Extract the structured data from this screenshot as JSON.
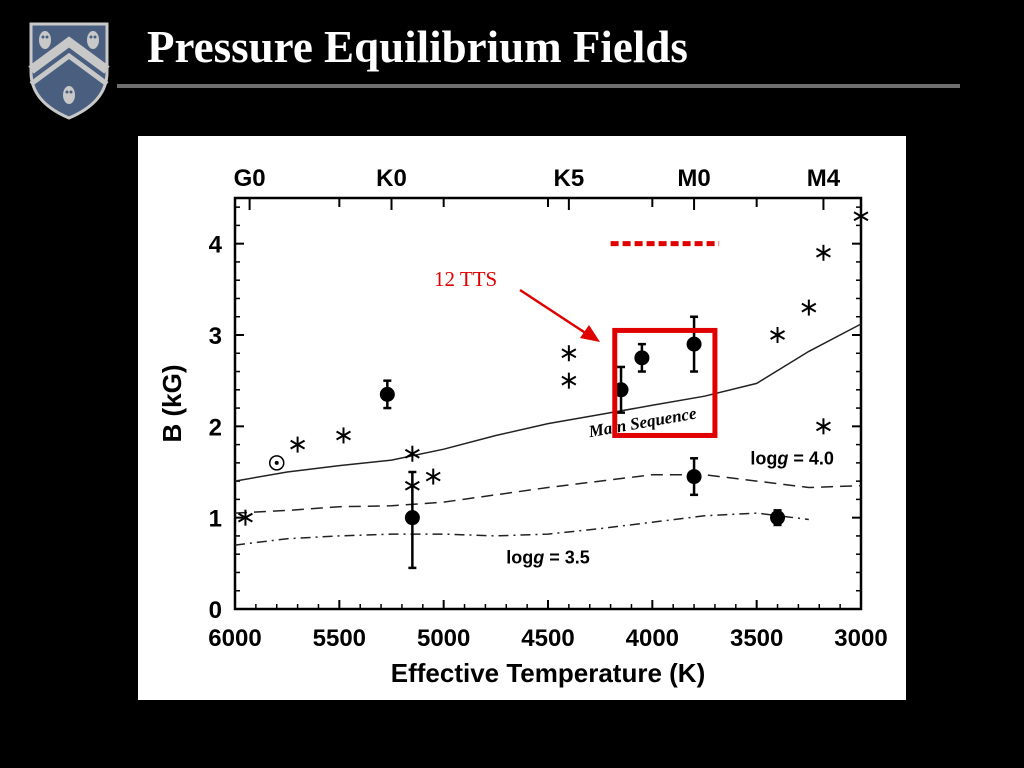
{
  "slide": {
    "title": "Pressure Equilibrium Fields"
  },
  "colors": {
    "background": "#000000",
    "title_text": "#ffffff",
    "rule": "#6e6e6e",
    "annotation_red": "#e00000",
    "crest_blue": "#4a5f80",
    "crest_gray": "#c8c8c8"
  },
  "annotation": {
    "label": "12 TTS"
  },
  "chart_data": {
    "type": "scatter",
    "title": "",
    "xlabel": "Effective Temperature (K)",
    "ylabel": "B (kG)",
    "xlim": [
      6000,
      3000
    ],
    "ylim": [
      0,
      4.5
    ],
    "x_reversed": true,
    "grid": false,
    "legend": "none",
    "x_ticks": [
      {
        "value": 6000,
        "label": "6000"
      },
      {
        "value": 5500,
        "label": "5500"
      },
      {
        "value": 5000,
        "label": "5000"
      },
      {
        "value": 4500,
        "label": "4500"
      },
      {
        "value": 4000,
        "label": "4000"
      },
      {
        "value": 3500,
        "label": "3500"
      },
      {
        "value": 3000,
        "label": "3000"
      }
    ],
    "y_ticks": [
      {
        "value": 0,
        "label": "0"
      },
      {
        "value": 1,
        "label": "1"
      },
      {
        "value": 2,
        "label": "2"
      },
      {
        "value": 3,
        "label": "3"
      },
      {
        "value": 4,
        "label": "4"
      }
    ],
    "top_axis_ticks": [
      {
        "value": 5930,
        "label": "G0"
      },
      {
        "value": 5250,
        "label": "K0"
      },
      {
        "value": 4400,
        "label": "K5"
      },
      {
        "value": 3800,
        "label": "M0"
      },
      {
        "value": 3180,
        "label": "M4"
      }
    ],
    "series": [
      {
        "marker": "filled-circle-errorbar",
        "points": [
          {
            "x": 5270,
            "y": 2.35,
            "err_low": 0.15,
            "err_high": 0.15
          },
          {
            "x": 5150,
            "y": 1.0,
            "err_low": 0.55,
            "err_high": 0.5
          },
          {
            "x": 4150,
            "y": 2.4,
            "err_low": 0.25,
            "err_high": 0.25
          },
          {
            "x": 4050,
            "y": 2.75,
            "err_low": 0.15,
            "err_high": 0.15
          },
          {
            "x": 3800,
            "y": 2.9,
            "err_low": 0.3,
            "err_high": 0.3
          },
          {
            "x": 3800,
            "y": 1.45,
            "err_low": 0.2,
            "err_high": 0.2
          },
          {
            "x": 3400,
            "y": 1.0,
            "err_low": 0.08,
            "err_high": 0.08
          }
        ]
      },
      {
        "marker": "asterisk",
        "points": [
          {
            "x": 5950,
            "y": 1.0
          },
          {
            "x": 5700,
            "y": 1.8
          },
          {
            "x": 5480,
            "y": 1.9
          },
          {
            "x": 5150,
            "y": 1.7
          },
          {
            "x": 5150,
            "y": 1.35
          },
          {
            "x": 5050,
            "y": 1.45
          },
          {
            "x": 4400,
            "y": 2.8
          },
          {
            "x": 4400,
            "y": 2.5
          },
          {
            "x": 3400,
            "y": 3.0
          },
          {
            "x": 3250,
            "y": 3.3
          },
          {
            "x": 3180,
            "y": 3.9
          },
          {
            "x": 3180,
            "y": 2.0
          },
          {
            "x": 3000,
            "y": 4.3
          }
        ]
      },
      {
        "marker": "sun-symbol",
        "points": [
          {
            "x": 5800,
            "y": 1.6
          }
        ]
      }
    ],
    "curves": [
      {
        "style": "solid",
        "label": "Main Sequence",
        "label_at": {
          "x": 4300,
          "y": 1.88
        },
        "label_angle_deg": -10,
        "points": [
          [
            6000,
            1.4
          ],
          [
            5750,
            1.5
          ],
          [
            5500,
            1.57
          ],
          [
            5250,
            1.63
          ],
          [
            5000,
            1.75
          ],
          [
            4750,
            1.9
          ],
          [
            4500,
            2.03
          ],
          [
            4250,
            2.13
          ],
          [
            4000,
            2.23
          ],
          [
            3750,
            2.33
          ],
          [
            3500,
            2.47
          ],
          [
            3250,
            2.82
          ],
          [
            3000,
            3.12
          ]
        ]
      },
      {
        "style": "dashed",
        "label": "logg = 4.0",
        "label_at": {
          "x": 3530,
          "y": 1.58
        },
        "points": [
          [
            6000,
            1.05
          ],
          [
            5750,
            1.08
          ],
          [
            5500,
            1.12
          ],
          [
            5250,
            1.13
          ],
          [
            5000,
            1.17
          ],
          [
            4750,
            1.25
          ],
          [
            4500,
            1.33
          ],
          [
            4250,
            1.4
          ],
          [
            4000,
            1.47
          ],
          [
            3750,
            1.47
          ],
          [
            3500,
            1.4
          ],
          [
            3250,
            1.33
          ],
          [
            3000,
            1.35
          ]
        ]
      },
      {
        "style": "dash-dot",
        "label": "logg = 3.5",
        "label_at": {
          "x": 4700,
          "y": 0.5
        },
        "points": [
          [
            6000,
            0.7
          ],
          [
            5750,
            0.77
          ],
          [
            5500,
            0.8
          ],
          [
            5250,
            0.82
          ],
          [
            5000,
            0.82
          ],
          [
            4750,
            0.8
          ],
          [
            4500,
            0.82
          ],
          [
            4250,
            0.88
          ],
          [
            4000,
            0.95
          ],
          [
            3750,
            1.02
          ],
          [
            3500,
            1.05
          ],
          [
            3250,
            0.98
          ]
        ]
      }
    ],
    "highlight_box": {
      "x0": 4180,
      "x1": 3700,
      "y0": 1.9,
      "y1": 3.05
    },
    "dotted_marker": {
      "x0": 4200,
      "x1": 3680,
      "y": 4.0
    }
  }
}
